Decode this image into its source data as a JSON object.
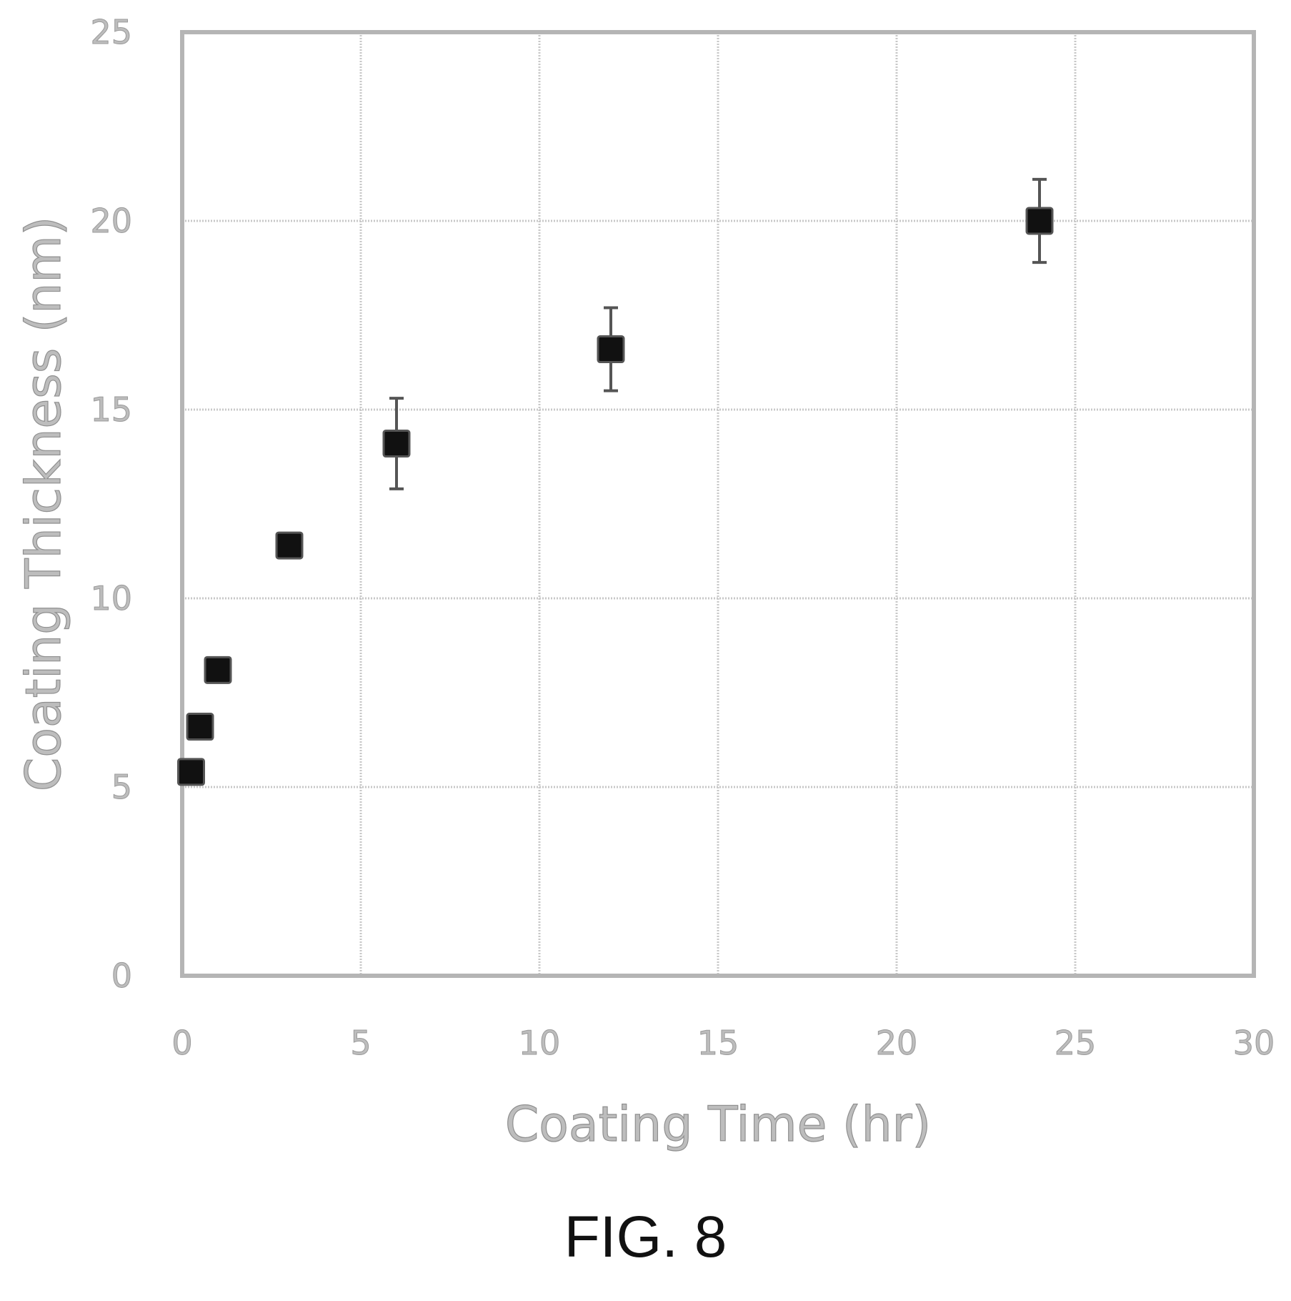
{
  "chart_data": {
    "type": "scatter",
    "xlabel": "Coating Time (hr)",
    "ylabel": "Coating Thickness (nm)",
    "xlim": [
      0,
      30
    ],
    "ylim": [
      0,
      25
    ],
    "x_ticks": [
      "0",
      "5",
      "10",
      "15",
      "20",
      "25",
      "30"
    ],
    "y_ticks": [
      "0",
      "5",
      "10",
      "15",
      "20",
      "25"
    ],
    "grid": true,
    "marker": "square",
    "marker_color": "#111111",
    "grid_color": "#c8c8c8",
    "label_color": "#bdbdbd",
    "points": [
      {
        "x": 0.25,
        "y": 5.4,
        "err": 0
      },
      {
        "x": 0.5,
        "y": 6.6,
        "err": 0
      },
      {
        "x": 1,
        "y": 8.1,
        "err": 0.2
      },
      {
        "x": 3,
        "y": 11.4,
        "err": 0
      },
      {
        "x": 6,
        "y": 14.1,
        "err": 1.2
      },
      {
        "x": 12,
        "y": 16.6,
        "err": 1.1
      },
      {
        "x": 24,
        "y": 20.0,
        "err": 1.1
      }
    ]
  },
  "caption": "FIG. 8"
}
